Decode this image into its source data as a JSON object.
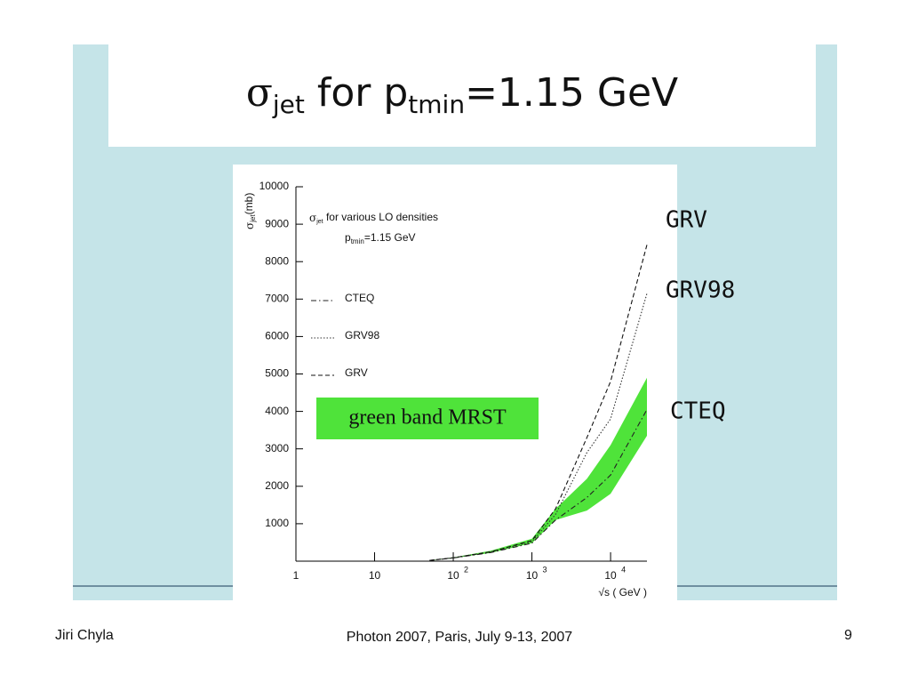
{
  "slide": {
    "title": {
      "symbol": "σ",
      "symbol_sub": "jet",
      "middle": " for p",
      "middle_sub": "tmin",
      "rest": "=1.15 GeV"
    },
    "footer": {
      "left": "Jiri Chyla",
      "center": "Photon 2007, Paris, July 9-13, 2007",
      "right": "9"
    }
  },
  "chart_data": {
    "type": "line",
    "y_label": {
      "symbol": "σ",
      "sub": "jet",
      "rest": "(mb)"
    },
    "x_label": "√s ( GeV )",
    "legend_title": {
      "symbol": "σ",
      "sub": "jet",
      "rest": " for various LO densities"
    },
    "legend_subtitle": {
      "p": "p",
      "sub": "tmin",
      "rest": "=1.15 GeV"
    },
    "x_log": true,
    "xlim": [
      1,
      29000
    ],
    "xticks": [
      1,
      10,
      {
        "value": 100,
        "label": "10",
        "exponent": "2"
      },
      {
        "value": 1000,
        "label": "10",
        "exponent": "3"
      },
      {
        "value": 10000,
        "label": "10",
        "exponent": "4"
      }
    ],
    "ylim": [
      0,
      10000
    ],
    "yticks": [
      1000,
      2000,
      3000,
      4000,
      5000,
      6000,
      7000,
      8000,
      9000,
      10000
    ],
    "x": [
      50,
      100,
      300,
      1000,
      2000,
      5000,
      10000,
      29000
    ],
    "series": [
      {
        "name": "CTEQ",
        "color": "#222222",
        "style": "dashdot",
        "values": [
          20,
          85,
          230,
          480,
          1100,
          1700,
          2300,
          4050
        ]
      },
      {
        "name": "GRV98",
        "color": "#333333",
        "style": "dotted",
        "values": [
          20,
          90,
          250,
          520,
          1250,
          2900,
          3800,
          7150
        ]
      },
      {
        "name": "GRV",
        "color": "#111111",
        "style": "dashed",
        "values": [
          20,
          90,
          250,
          550,
          1400,
          3300,
          4800,
          8450
        ]
      }
    ],
    "band": {
      "annotation": "green band MRST",
      "color": "#4fe33a",
      "lower": [
        15,
        80,
        220,
        480,
        1100,
        1350,
        1800,
        3350
      ],
      "upper": [
        25,
        100,
        280,
        600,
        1400,
        2200,
        3100,
        4900
      ]
    }
  }
}
